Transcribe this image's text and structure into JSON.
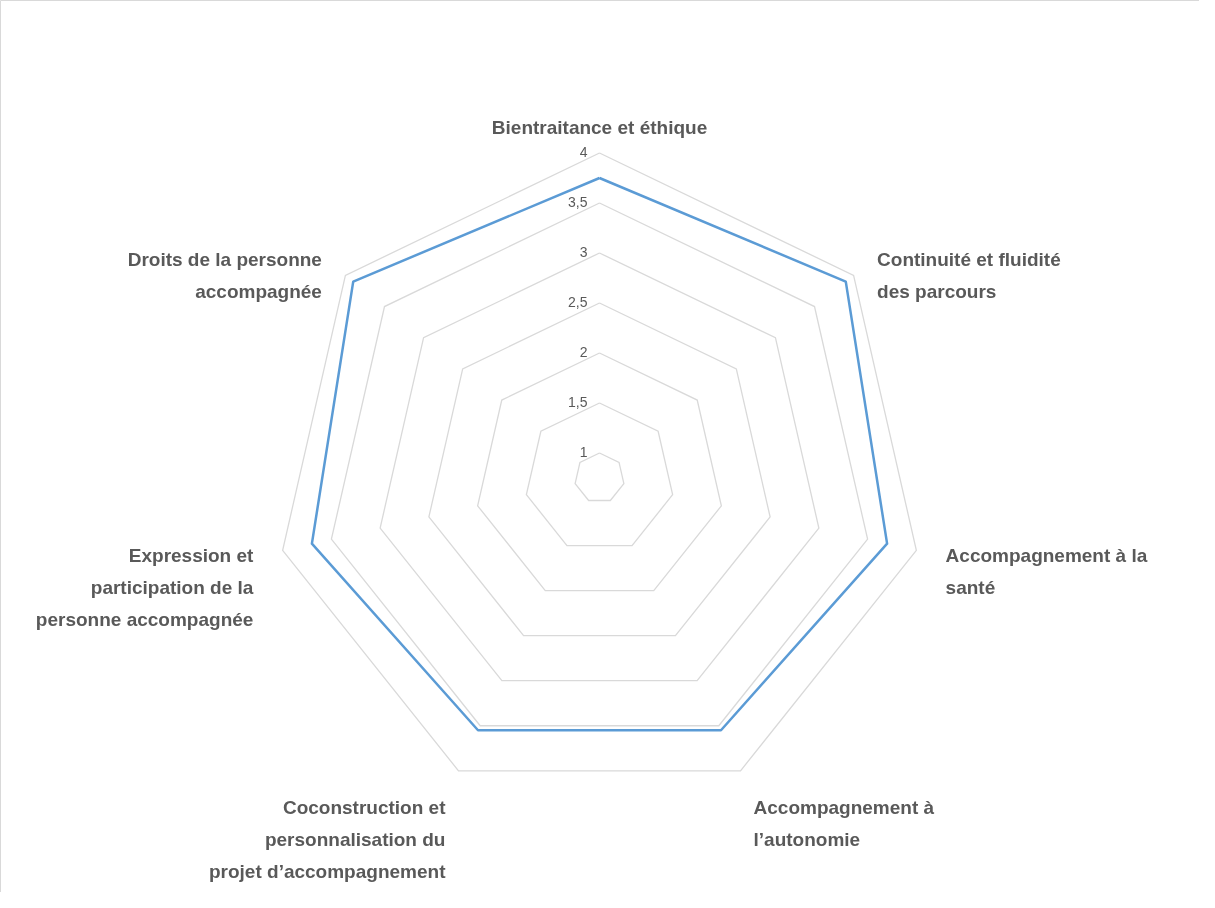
{
  "chart_data": {
    "type": "radar",
    "categories": [
      "Bientraitance et éthique",
      "Continuité et fluidité des parcours",
      "Accompagnement à la santé",
      "Accompagnement à l’autonomie",
      "Coconstruction et personnalisation du projet d’accompagnement",
      "Expression et participation de la personne accompagnée",
      "Droits de la personne accompagnée"
    ],
    "series": [
      {
        "color": "#5b9bd5",
        "values": [
          3.75,
          3.9,
          3.7,
          3.55,
          3.55,
          3.7,
          3.9
        ]
      }
    ],
    "ylim": [
      0.75,
      4
    ],
    "yticks": [
      1,
      {
        "value": 1.5,
        "label": "1,5"
      },
      2,
      {
        "value": 2.5,
        "label": "2,5"
      },
      3,
      {
        "value": 3.5,
        "label": "3,5"
      },
      4
    ],
    "grid": true
  }
}
